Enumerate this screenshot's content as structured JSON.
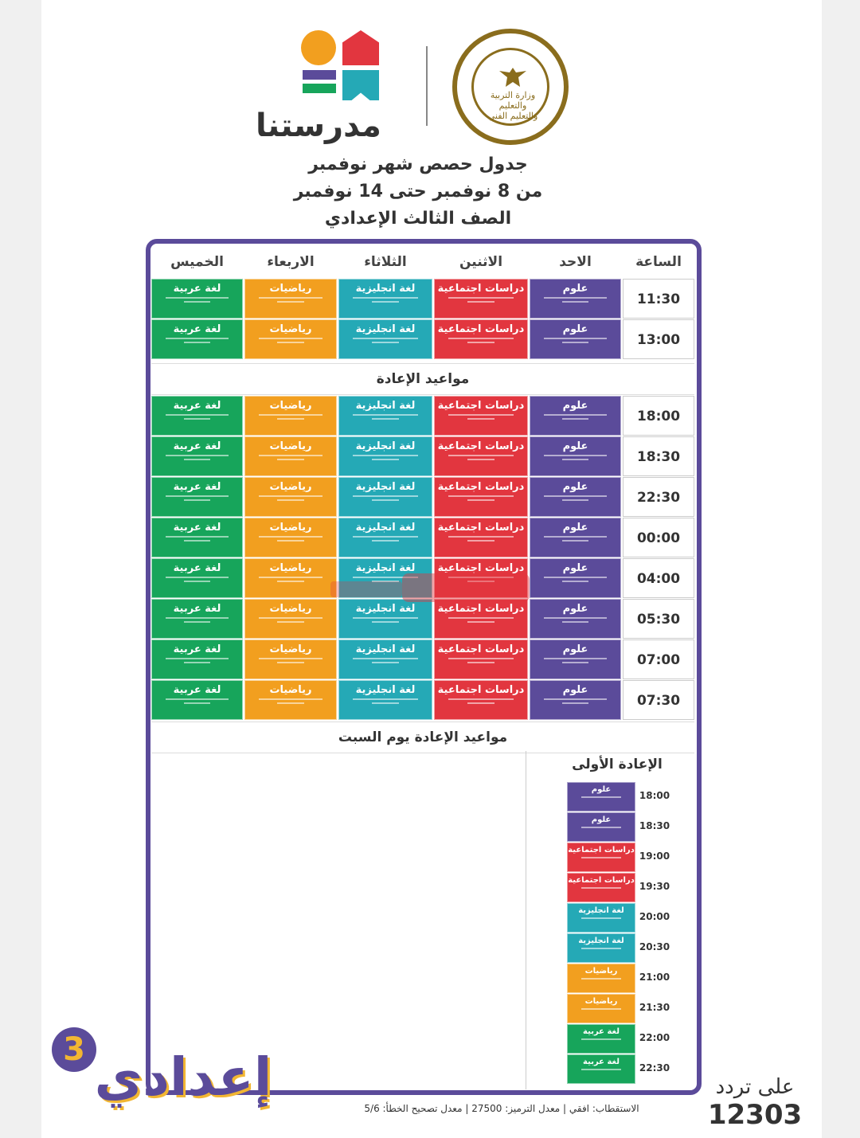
{
  "brand": {
    "name": "مدرستنا",
    "seal_text": "وزارة التربية والتعليم والتعليم الفني"
  },
  "title": {
    "line1": "جدول حصص شهر نوفمبر",
    "line2": "من 8 نوفمبر حتى 14 نوفمبر",
    "line3": "الصف الثالث الإعدادي"
  },
  "colors": {
    "purple": "#5b4b9a",
    "red": "#e2363f",
    "teal": "#25a9b6",
    "orange": "#f29f1f",
    "green": "#17a55b"
  },
  "table": {
    "headers": {
      "time": "الساعة",
      "sun": "الاحد",
      "mon": "الاثنين",
      "tue": "الثلاثاء",
      "wed": "الاربعاء",
      "thu": "الخميس"
    },
    "subjects": {
      "sun": "علوم",
      "mon": "دراسات اجتماعية",
      "tue": "لغة انجليزية",
      "wed": "رياضيات",
      "thu": "لغة عربية"
    },
    "times_top": [
      "11:30",
      "13:00"
    ],
    "replay_label": "مواعيد الإعادة",
    "times_replay": [
      "18:00",
      "18:30",
      "22:30",
      "00:00",
      "04:00",
      "05:30",
      "07:00",
      "07:30"
    ],
    "saturday_label": "مواعيد الإعادة يوم السبت"
  },
  "saturday": {
    "title": "الإعادة الأولى",
    "rows": [
      {
        "time": "18:00",
        "subject": "علوم"
      },
      {
        "time": "18:30",
        "subject": "علوم"
      },
      {
        "time": "19:00",
        "subject": "دراسات اجتماعية"
      },
      {
        "time": "19:30",
        "subject": "دراسات اجتماعية"
      },
      {
        "time": "20:00",
        "subject": "لغة انجليزية"
      },
      {
        "time": "20:30",
        "subject": "لغة انجليزية"
      },
      {
        "time": "21:00",
        "subject": "رياضيات"
      },
      {
        "time": "21:30",
        "subject": "رياضيات"
      },
      {
        "time": "22:00",
        "subject": "لغة عربية"
      },
      {
        "time": "22:30",
        "subject": "لغة عربية"
      }
    ]
  },
  "footer": {
    "grade_word": "إعدادي",
    "grade_num": "3",
    "call_label": "على تردد",
    "frequency": "12303",
    "stats": "الاستقطاب: افقي | معدل الترميز: 27500 | معدل تصحيح الخطأ: 5/6"
  }
}
